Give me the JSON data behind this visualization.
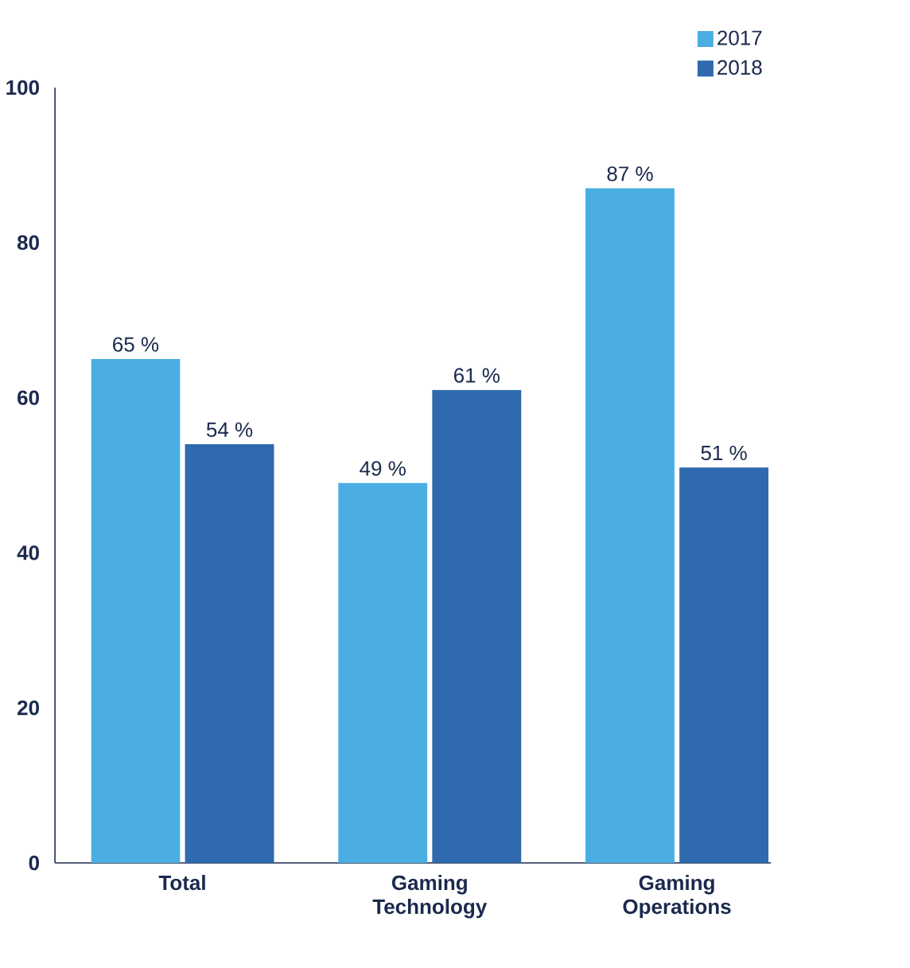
{
  "chart_data": {
    "type": "bar",
    "categories": [
      "Total",
      "Gaming Technology",
      "Gaming Operations"
    ],
    "series": [
      {
        "name": "2017",
        "color": "#4aaee2",
        "values": [
          65,
          49,
          87
        ],
        "value_labels": [
          "65 %",
          "49 %",
          "87 %"
        ]
      },
      {
        "name": "2018",
        "color": "#2f6aae",
        "values": [
          54,
          61,
          51
        ],
        "value_labels": [
          "54 %",
          "61 %",
          "51 %"
        ]
      }
    ],
    "ylim": [
      0,
      100
    ],
    "yticks": [
      0,
      20,
      40,
      60,
      80,
      100
    ],
    "legend": "top right"
  }
}
